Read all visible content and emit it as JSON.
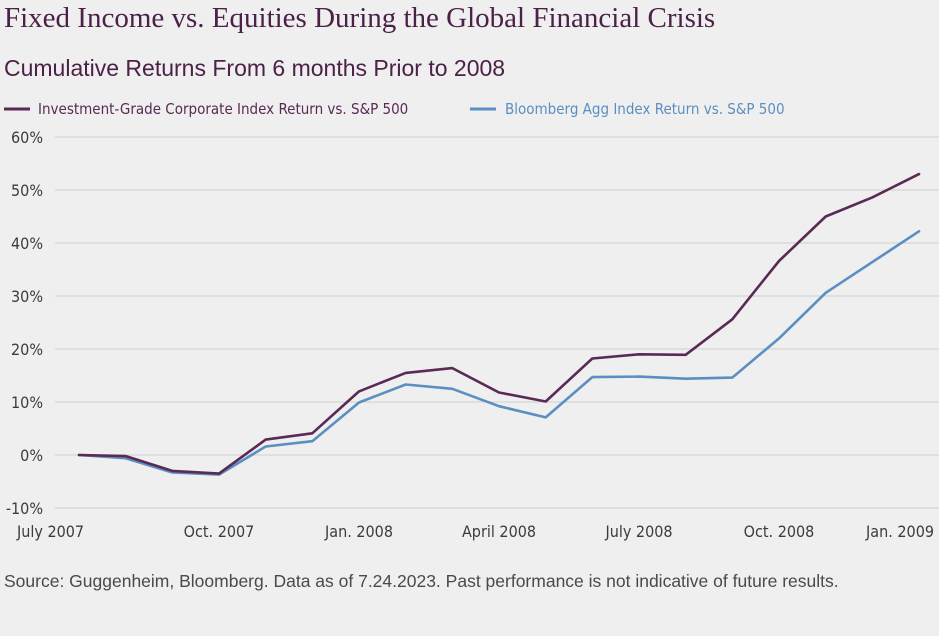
{
  "chart_data": {
    "type": "line",
    "title": "Fixed Income vs. Equities During the Global Financial Crisis",
    "subtitle": "Cumulative Returns From 6 months Prior to 2008",
    "x": [
      "2007-07",
      "2007-08",
      "2007-09",
      "2007-10",
      "2007-11",
      "2007-12",
      "2008-01",
      "2008-02",
      "2008-03",
      "2008-04",
      "2008-05",
      "2008-06",
      "2008-07",
      "2008-08",
      "2008-09",
      "2008-10",
      "2008-11",
      "2008-12",
      "2009-01"
    ],
    "x_tick_labels": [
      "July 2007",
      "Oct. 2007",
      "Jan. 2008",
      "April 2008",
      "July 2008",
      "Oct. 2008",
      "Jan. 2009"
    ],
    "y_tick_labels": [
      "60%",
      "50%",
      "40%",
      "30%",
      "20%",
      "10%",
      "0%",
      "-10%"
    ],
    "ylim": [
      -10,
      60
    ],
    "y_unit": "%",
    "grid": true,
    "legend_position": "top",
    "series": [
      {
        "name": "Investment-Grade Corporate Index Return vs. S&P 500",
        "color": "#5a2a55",
        "values": [
          0.0,
          -0.2,
          -3.0,
          -3.5,
          2.9,
          4.1,
          12.0,
          15.5,
          16.4,
          11.8,
          10.1,
          18.2,
          19.0,
          18.9,
          25.6,
          36.6,
          45.0,
          48.6,
          53.0
        ]
      },
      {
        "name": "Bloomberg Agg Index Return vs. S&P 500",
        "color": "#5b8fc1",
        "values": [
          0.0,
          -0.6,
          -3.3,
          -3.7,
          1.6,
          2.6,
          9.9,
          13.3,
          12.5,
          9.2,
          7.1,
          14.7,
          14.8,
          14.4,
          14.6,
          22.0,
          30.6,
          36.4,
          42.2
        ]
      }
    ]
  },
  "source_note": "Source: Guggenheim, Bloomberg. Data as of 7.24.2023. Past performance is not indicative of future results."
}
